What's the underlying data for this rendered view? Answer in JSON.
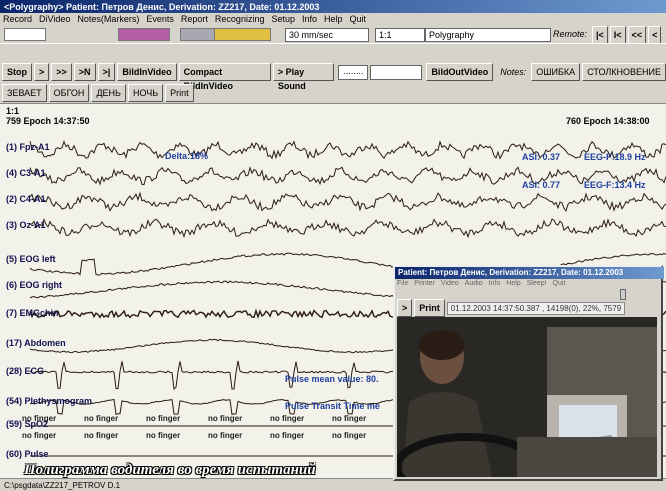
{
  "title_bar": "<Polygraphy> Patient: Петров Денис, Derivation: ZZ217, Date: 01.12.2003",
  "menu": [
    "Record",
    "DiVideo",
    "Notes(Markers)",
    "Events",
    "Report",
    "Recognizing",
    "Setup",
    "Info",
    "Help",
    "Quit"
  ],
  "toolbar": {
    "selects": [
      "30 mm/sec",
      "1:1",
      "Polygraphy"
    ],
    "remote_label": "Remote:",
    "nav_buttons": [
      "|<",
      "I<",
      "<<",
      "<"
    ]
  },
  "controls": {
    "buttons": [
      "Stop",
      ">",
      ">>",
      ">N",
      ">|",
      "BildInVideo",
      "Compact BildInVideo",
      "> Play Sound"
    ],
    "dots": "........",
    "out_button": "BildOutVideo",
    "notes_label": "Notes:",
    "notes": [
      "ОШИБКА",
      "СТОЛКНОВЕНИЕ"
    ]
  },
  "marks": [
    "ЗЕВАЕТ",
    "ОБГОН",
    "ДЕНЬ",
    "НОЧЬ",
    "Print"
  ],
  "chart": {
    "scale": "1:1",
    "epoch_left": "759 Epoch  14:37:50",
    "epoch_right": "760 Epoch  14:38:00",
    "channels": [
      "(1) Fpz-A1",
      "(4) C3-A1",
      "(2) C4-A1",
      "(3) Oz-A1",
      "(5) EOG left",
      "(6) EOG right",
      "(7) EMGchin",
      "(17) Abdomen",
      "(28) ECG",
      "(54) Plethysmogram",
      "(59) SpO2",
      "(60) Pulse"
    ],
    "annotations": [
      "Delta:18%",
      "ASI: 0.37",
      "EEG-F:18.9 Hz",
      "ASI: 0.77",
      "EEG-F:13.4 Hz",
      "Pulse mean value: 80.",
      "Pulse Transit Time me"
    ],
    "no_finger": [
      "no finger",
      "no finger",
      "no finger",
      "no finger",
      "no finger",
      "no finger",
      "no finger",
      "no finger",
      "no finger",
      "no finger",
      "no finger",
      "no finger"
    ]
  },
  "video": {
    "title": "Patient: Петров Денис, Derivation: ZZ217, Date: 01.12.2003",
    "menu": [
      "File",
      "Printer",
      "Video",
      "Audio",
      "Info",
      "Help",
      "Sleep!",
      "Quit"
    ],
    "buttons": [
      ">",
      "Print"
    ],
    "status": "01.12.2003 14:37:50.387 , 14198(0), 22%, 7579"
  },
  "caption": "Полиграмма водителя во время испытаний",
  "status_bar": "C:\\psgdata\\ZZ217_PETROV D.1"
}
